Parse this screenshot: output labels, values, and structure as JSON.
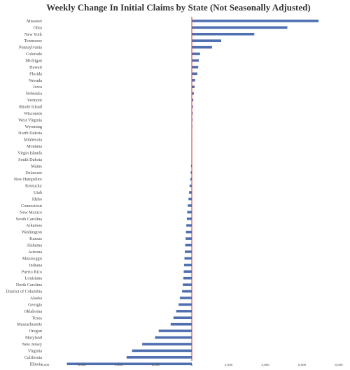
{
  "chart_data": {
    "type": "bar",
    "orientation": "horizontal",
    "title": "Weekly Change In Initial Claims by State (Not Seasonally Adjusted)",
    "xlabel": "",
    "ylabel": "",
    "xlim": [
      -8000,
      8000
    ],
    "x_ticks": [
      -8000,
      -6000,
      -4000,
      -2000,
      0,
      2000,
      4000,
      6000,
      8000
    ],
    "x_tick_labels": [
      "-8,000",
      "-6,000",
      "-4,000",
      "-2,000",
      "0",
      "2,000",
      "4,000",
      "6,000",
      "8,000"
    ],
    "grid": false,
    "legend": "none",
    "bar_color": "#4f6fb0",
    "zero_line_color": "#d9302f",
    "categories": [
      "Missouri",
      "Ohio",
      "New York",
      "Tennessee",
      "Pennsylvania",
      "Colorado",
      "Michigan",
      "Hawaii",
      "Florida",
      "Nevada",
      "Iowa",
      "Nebraska",
      "Vermont",
      "Rhode Island",
      "Wisconsin",
      "West Virginia",
      "Wyoming",
      "North Dakota",
      "Minnesota",
      "Montana",
      "Virgin Islands",
      "South Dakota",
      "Maine",
      "Delaware",
      "New Hampshire",
      "Kentucky",
      "Utah",
      "Idaho",
      "Connecticut",
      "New Mexico",
      "South Carolina",
      "Arkansas",
      "Washington",
      "Kansas",
      "Alabama",
      "Arizona",
      "Mississippi",
      "Indiana",
      "Puerto Rico",
      "Louisiana",
      "North Carolina",
      "District of Columbia",
      "Alaska",
      "Georgia",
      "Oklahoma",
      "Texas",
      "Massachusetts",
      "Oregon",
      "Maryland",
      "New Jersey",
      "Virginia",
      "California",
      "Illinois"
    ],
    "values": [
      6900,
      5200,
      3400,
      1600,
      1100,
      450,
      380,
      350,
      300,
      180,
      150,
      110,
      80,
      60,
      50,
      40,
      30,
      20,
      10,
      5,
      -10,
      -20,
      -40,
      -60,
      -80,
      -120,
      -150,
      -180,
      -220,
      -250,
      -270,
      -300,
      -320,
      -340,
      -360,
      -380,
      -400,
      -420,
      -440,
      -460,
      -490,
      -530,
      -650,
      -720,
      -850,
      -1000,
      -1150,
      -1800,
      -2000,
      -2700,
      -3250,
      -3550,
      -6800
    ]
  }
}
